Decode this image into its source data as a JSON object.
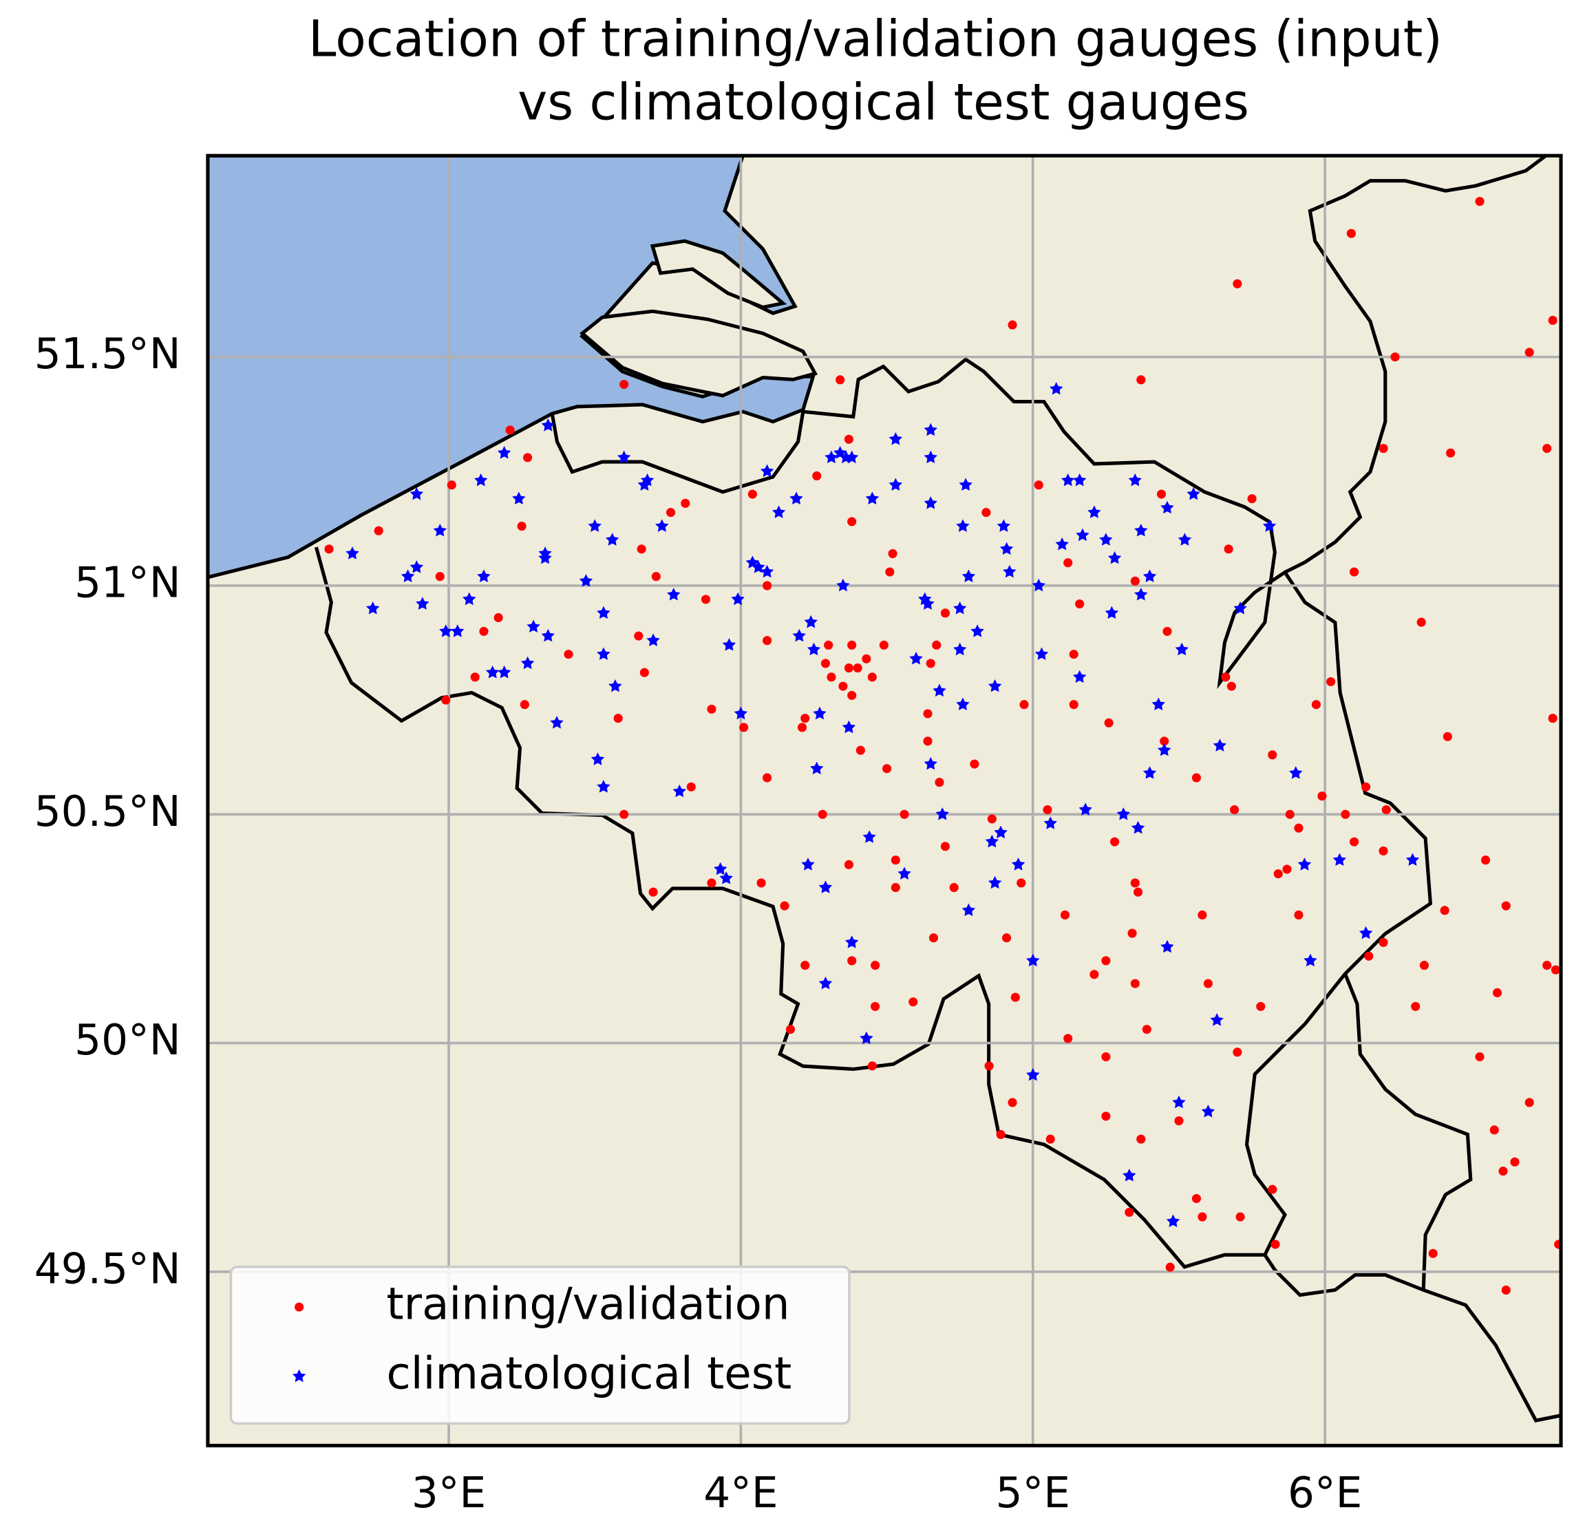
{
  "chart_data": {
    "type": "scatter",
    "title": [
      "Location of training/validation gauges (input)",
      "vs climatological test gauges"
    ],
    "xlim": [
      2.175,
      6.808
    ],
    "ylim": [
      49.12,
      51.94
    ],
    "xticks": [
      {
        "value": 3,
        "label": "3°E"
      },
      {
        "value": 4,
        "label": "4°E"
      },
      {
        "value": 5,
        "label": "5°E"
      },
      {
        "value": 6,
        "label": "6°E"
      }
    ],
    "yticks": [
      {
        "value": 49.5,
        "label": "49.5°N"
      },
      {
        "value": 50,
        "label": "50°N"
      },
      {
        "value": 50.5,
        "label": "50.5°N"
      },
      {
        "value": 51,
        "label": "51°N"
      },
      {
        "value": 51.5,
        "label": "51.5°N"
      }
    ],
    "grid": true,
    "legend": "lower left",
    "land_color": "#efecdc",
    "ocean_color": "#97b6e1",
    "series": [
      {
        "name": "training/validation",
        "color": "#ff0000",
        "marker": "o",
        "x": [
          2.59,
          2.76,
          2.97,
          3.01,
          2.99,
          3.09,
          3.12,
          3.17,
          3.21,
          3.27,
          3.25,
          3.26,
          3.41,
          3.6,
          3.66,
          3.65,
          3.67,
          3.58,
          3.6,
          3.7,
          3.71,
          3.76,
          3.81,
          3.83,
          3.88,
          3.9,
          3.9,
          4.01,
          4.04,
          4.09,
          4.09,
          4.09,
          4.07,
          4.15,
          4.17,
          4.22,
          4.21,
          4.22,
          4.26,
          4.28,
          4.34,
          4.37,
          4.38,
          4.3,
          4.29,
          4.31,
          4.38,
          4.37,
          4.35,
          4.38,
          4.4,
          4.43,
          4.45,
          4.41,
          4.37,
          4.38,
          4.46,
          4.46,
          4.45,
          4.49,
          4.52,
          4.51,
          4.5,
          4.56,
          4.53,
          4.53,
          4.59,
          4.66,
          4.64,
          4.64,
          4.65,
          4.67,
          4.7,
          4.68,
          4.7,
          4.73,
          4.8,
          4.84,
          4.86,
          4.91,
          4.94,
          4.85,
          4.93,
          4.89,
          4.96,
          4.97,
          4.93,
          5.02,
          5.05,
          5.06,
          5.11,
          5.12,
          5.12,
          5.14,
          5.14,
          5.16,
          5.21,
          5.25,
          5.26,
          5.28,
          5.25,
          5.25,
          5.33,
          5.34,
          5.35,
          5.36,
          5.35,
          5.35,
          5.37,
          5.37,
          5.39,
          5.44,
          5.46,
          5.45,
          5.47,
          5.5,
          5.56,
          5.58,
          5.56,
          5.58,
          5.6,
          5.67,
          5.7,
          5.66,
          5.68,
          5.69,
          5.7,
          5.71,
          5.75,
          5.78,
          5.82,
          5.83,
          5.82,
          5.84,
          5.87,
          5.88,
          5.91,
          5.91,
          5.97,
          5.99,
          6.02,
          6.07,
          6.1,
          6.1,
          6.09,
          6.14,
          6.15,
          6.2,
          6.21,
          6.2,
          6.2,
          6.24,
          6.31,
          6.33,
          6.34,
          6.37,
          6.41,
          6.42,
          6.43,
          6.53,
          6.53,
          6.55,
          6.58,
          6.59,
          6.61,
          6.62,
          6.62,
          6.65,
          6.7,
          6.7,
          6.76,
          6.76,
          6.78,
          6.78,
          6.79,
          6.8
        ],
        "y": [
          51.08,
          51.12,
          51.02,
          51.22,
          50.75,
          50.8,
          50.9,
          50.93,
          51.34,
          51.28,
          51.13,
          50.74,
          50.85,
          51.44,
          51.08,
          50.89,
          50.81,
          50.71,
          50.5,
          50.33,
          51.02,
          51.16,
          51.18,
          50.56,
          50.97,
          50.73,
          50.35,
          50.69,
          51.2,
          51.0,
          50.88,
          50.58,
          50.35,
          50.3,
          50.03,
          50.17,
          50.69,
          50.71,
          51.24,
          50.5,
          51.45,
          51.32,
          51.14,
          50.87,
          50.83,
          50.8,
          50.87,
          50.82,
          50.78,
          50.76,
          50.82,
          50.84,
          50.8,
          50.64,
          50.39,
          50.18,
          50.17,
          50.08,
          49.95,
          50.87,
          51.07,
          51.03,
          50.6,
          50.5,
          50.4,
          50.34,
          50.09,
          50.23,
          50.72,
          50.66,
          50.83,
          50.87,
          50.94,
          50.57,
          50.43,
          50.34,
          50.61,
          51.16,
          50.49,
          50.23,
          50.1,
          49.95,
          49.87,
          49.8,
          50.35,
          50.74,
          51.57,
          51.22,
          50.51,
          49.79,
          50.28,
          50.01,
          51.05,
          50.74,
          50.85,
          50.96,
          50.15,
          50.18,
          50.7,
          50.44,
          49.97,
          49.84,
          49.63,
          50.24,
          50.35,
          50.33,
          50.13,
          51.01,
          51.45,
          49.79,
          50.03,
          51.2,
          50.9,
          50.66,
          49.51,
          49.83,
          49.66,
          49.62,
          50.58,
          50.28,
          50.13,
          51.08,
          51.66,
          50.8,
          50.78,
          50.51,
          49.98,
          49.62,
          51.19,
          50.08,
          49.68,
          49.56,
          50.63,
          50.37,
          50.38,
          50.5,
          50.47,
          50.28,
          50.74,
          50.54,
          50.79,
          50.5,
          50.44,
          51.03,
          51.77,
          50.56,
          50.19,
          51.3,
          50.51,
          50.42,
          50.22,
          51.5,
          50.08,
          50.92,
          50.17,
          49.54,
          50.29,
          50.67,
          51.29,
          51.84,
          49.97,
          50.4,
          49.81,
          50.11,
          49.72,
          50.3,
          49.46,
          49.74,
          51.51,
          49.87,
          51.3,
          50.17,
          51.58,
          50.71,
          50.16,
          49.56
        ]
      },
      {
        "name": "climatological test",
        "color": "#0000ff",
        "marker": "*",
        "x": [
          2.67,
          2.74,
          2.86,
          2.89,
          2.89,
          2.91,
          2.97,
          2.99,
          3.03,
          3.07,
          3.11,
          3.12,
          3.15,
          3.19,
          3.19,
          3.24,
          3.27,
          3.29,
          3.33,
          3.33,
          3.34,
          3.34,
          3.37,
          3.47,
          3.5,
          3.51,
          3.53,
          3.53,
          3.53,
          3.56,
          3.57,
          3.6,
          3.67,
          3.68,
          3.7,
          3.73,
          3.77,
          3.79,
          3.93,
          3.95,
          3.96,
          3.99,
          4.0,
          4.04,
          4.06,
          4.09,
          4.09,
          4.13,
          4.19,
          4.2,
          4.23,
          4.24,
          4.25,
          4.26,
          4.27,
          4.29,
          4.29,
          4.31,
          4.34,
          4.36,
          4.38,
          4.35,
          4.37,
          4.38,
          4.43,
          4.44,
          4.45,
          4.53,
          4.53,
          4.56,
          4.6,
          4.63,
          4.64,
          4.65,
          4.65,
          4.65,
          4.65,
          4.68,
          4.69,
          4.75,
          4.75,
          4.76,
          4.77,
          4.76,
          4.78,
          4.78,
          4.81,
          4.86,
          4.87,
          4.87,
          4.89,
          4.9,
          4.91,
          4.92,
          4.95,
          5.02,
          5.03,
          5.0,
          5.0,
          5.06,
          5.08,
          5.1,
          5.12,
          5.16,
          5.16,
          5.17,
          5.18,
          5.21,
          5.25,
          5.27,
          5.28,
          5.31,
          5.33,
          5.35,
          5.36,
          5.37,
          5.37,
          5.4,
          5.4,
          5.43,
          5.45,
          5.46,
          5.46,
          5.48,
          5.5,
          5.51,
          5.52,
          5.55,
          5.6,
          5.63,
          5.64,
          5.71,
          5.81,
          5.9,
          5.93,
          5.95,
          6.05,
          6.14,
          6.3
        ],
        "y": [
          51.07,
          50.95,
          51.02,
          51.04,
          51.2,
          50.96,
          51.12,
          50.9,
          50.9,
          50.97,
          51.23,
          51.02,
          50.81,
          50.81,
          51.29,
          51.19,
          50.83,
          50.91,
          51.06,
          51.07,
          51.35,
          50.89,
          50.7,
          51.01,
          51.13,
          50.62,
          50.85,
          50.94,
          50.56,
          51.1,
          50.78,
          51.28,
          51.22,
          51.23,
          50.88,
          51.13,
          50.98,
          50.55,
          50.38,
          50.36,
          50.87,
          50.97,
          50.72,
          51.05,
          51.04,
          51.03,
          51.25,
          51.16,
          51.19,
          50.89,
          50.39,
          50.92,
          50.86,
          50.6,
          50.72,
          50.13,
          50.34,
          51.28,
          51.29,
          51.28,
          51.28,
          51.0,
          50.69,
          50.22,
          50.01,
          50.45,
          51.19,
          51.32,
          51.22,
          50.37,
          50.84,
          50.97,
          50.96,
          51.34,
          51.28,
          51.18,
          50.61,
          50.77,
          50.5,
          50.86,
          50.95,
          50.74,
          51.22,
          51.13,
          51.02,
          50.29,
          50.9,
          50.44,
          50.78,
          50.35,
          50.46,
          51.13,
          51.08,
          51.03,
          50.39,
          51.0,
          50.85,
          50.18,
          49.93,
          50.48,
          51.43,
          51.09,
          51.23,
          51.23,
          50.8,
          51.11,
          50.51,
          51.16,
          51.1,
          50.94,
          51.06,
          50.5,
          49.71,
          51.23,
          50.47,
          51.12,
          50.98,
          51.02,
          50.59,
          50.74,
          50.64,
          51.17,
          50.21,
          49.61,
          49.87,
          50.86,
          51.1,
          51.2,
          49.85,
          50.05,
          50.65,
          50.95,
          51.13,
          50.59,
          50.39,
          50.18,
          50.4,
          50.24,
          50.4
        ]
      }
    ]
  }
}
